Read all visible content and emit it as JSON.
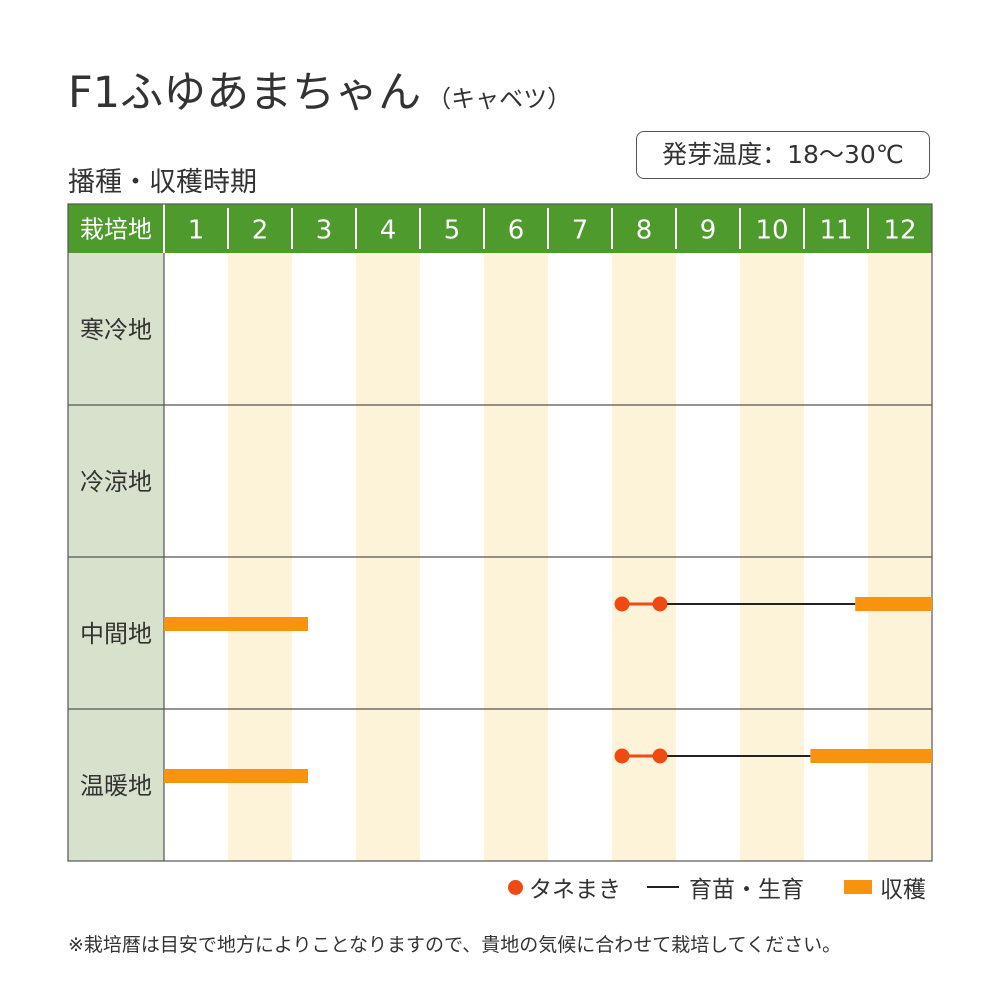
{
  "title": {
    "main": "F1ふゆあまちゃん",
    "sub": "（キャベツ）"
  },
  "germination": "発芽温度：18～30℃",
  "section_title": "播種・収穫時期",
  "chart_data": {
    "type": "gantt",
    "row_header": "栽培地",
    "months": [
      "1",
      "2",
      "3",
      "4",
      "5",
      "6",
      "7",
      "8",
      "9",
      "10",
      "11",
      "12"
    ],
    "rows": [
      {
        "region": "寒冷地",
        "sowing": [],
        "growing": [],
        "harvest": []
      },
      {
        "region": "冷涼地",
        "sowing": [],
        "growing": [],
        "harvest": []
      },
      {
        "region": "中間地",
        "sowing": [
          [
            8.0,
            8.75
          ]
        ],
        "growing": [
          [
            8.75,
            11.8
          ]
        ],
        "harvest": [
          [
            1.0,
            3.25
          ],
          [
            11.8,
            13.0
          ]
        ],
        "harvest_level": "lower"
      },
      {
        "region": "温暖地",
        "sowing": [
          [
            8.0,
            8.75
          ]
        ],
        "growing": [
          [
            8.75,
            11.1
          ]
        ],
        "harvest": [
          [
            1.0,
            3.25
          ],
          [
            11.1,
            13.0
          ]
        ],
        "harvest_level": "lower"
      }
    ],
    "colors": {
      "header_bg": "#4e9a2d",
      "header_text": "#ffffff",
      "region_bg": "#d8e1cb",
      "stripe": "#fdf3d9",
      "sowing": "#f04a14",
      "growing": "#222222",
      "harvest": "#f7930f",
      "grid": "#555555"
    }
  },
  "legend": {
    "sowing": "タネまき",
    "growing": "育苗・生育",
    "harvest": "収穫"
  },
  "footnote": "※栽培暦は目安で地方によりことなりますので、貴地の気候に合わせて栽培してください。"
}
